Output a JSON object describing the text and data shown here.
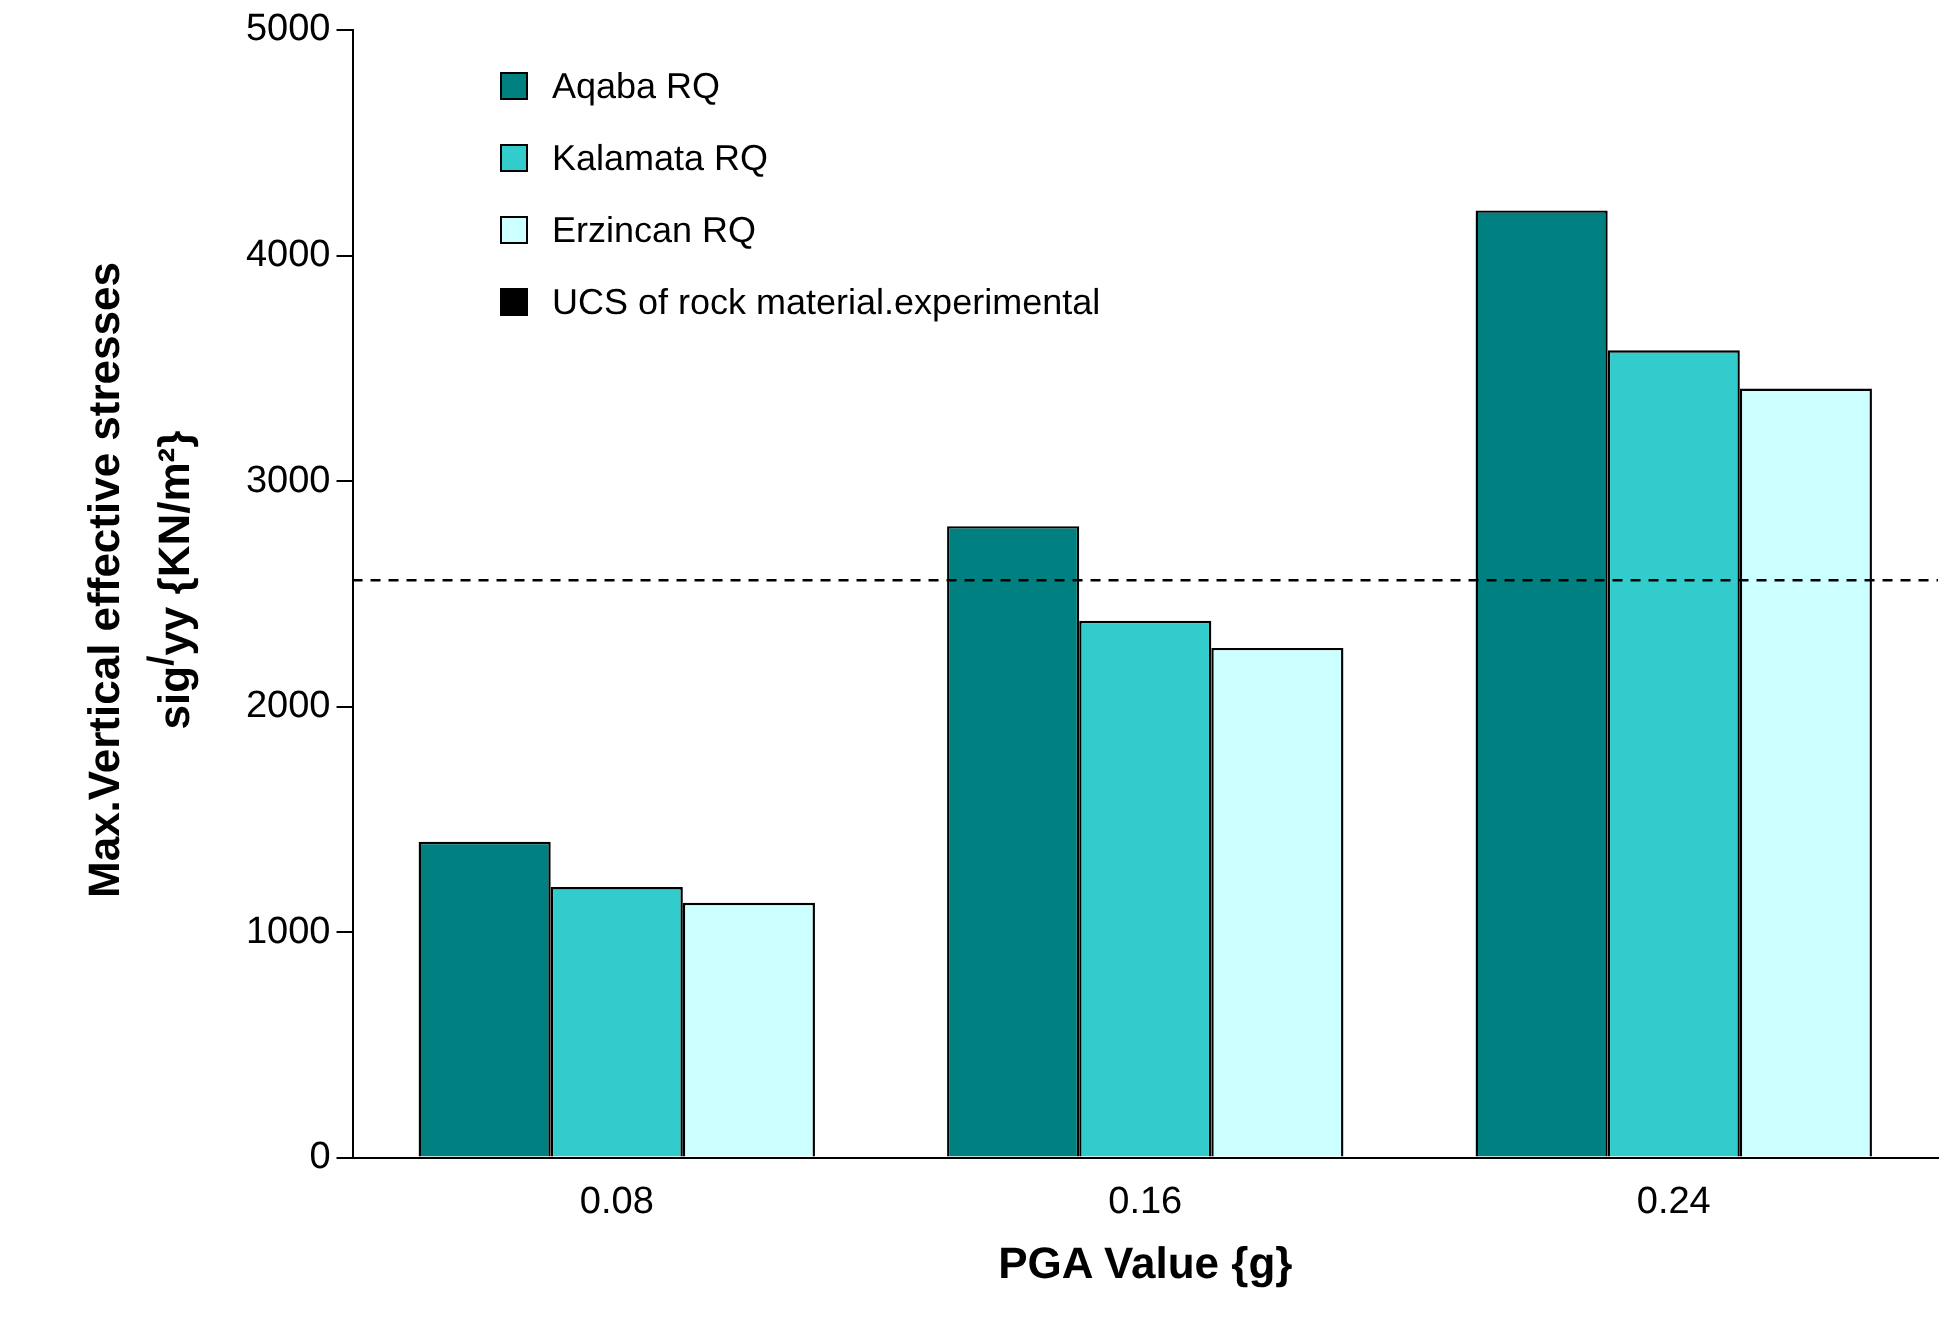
{
  "chart_data": {
    "type": "bar",
    "xlabel": "PGA Value {g}",
    "ylabel": "Max.Vertical effective stresses\nsig$^{/}$yy {KN/m²}",
    "categories": [
      "0.08",
      "0.16",
      "0.24"
    ],
    "series": [
      {
        "name": "Aqaba RQ",
        "color": "#008080",
        "values": [
          1400,
          2800,
          4200
        ]
      },
      {
        "name": "Kalamata RQ",
        "color": "#33cccc",
        "values": [
          1200,
          2380,
          3580
        ]
      },
      {
        "name": "Erzincan RQ",
        "color": "#ccffff",
        "values": [
          1130,
          2260,
          3410
        ]
      }
    ],
    "ref_lines": [
      {
        "axis": "y",
        "value": 2560,
        "label": "UCS of rock material.experimental",
        "color": "#000000",
        "line_style": "dashed"
      }
    ],
    "ylim": [
      0,
      5000
    ],
    "yticks": [
      0,
      1000,
      2000,
      3000,
      4000,
      5000
    ],
    "grid": false,
    "legend": "top left"
  }
}
